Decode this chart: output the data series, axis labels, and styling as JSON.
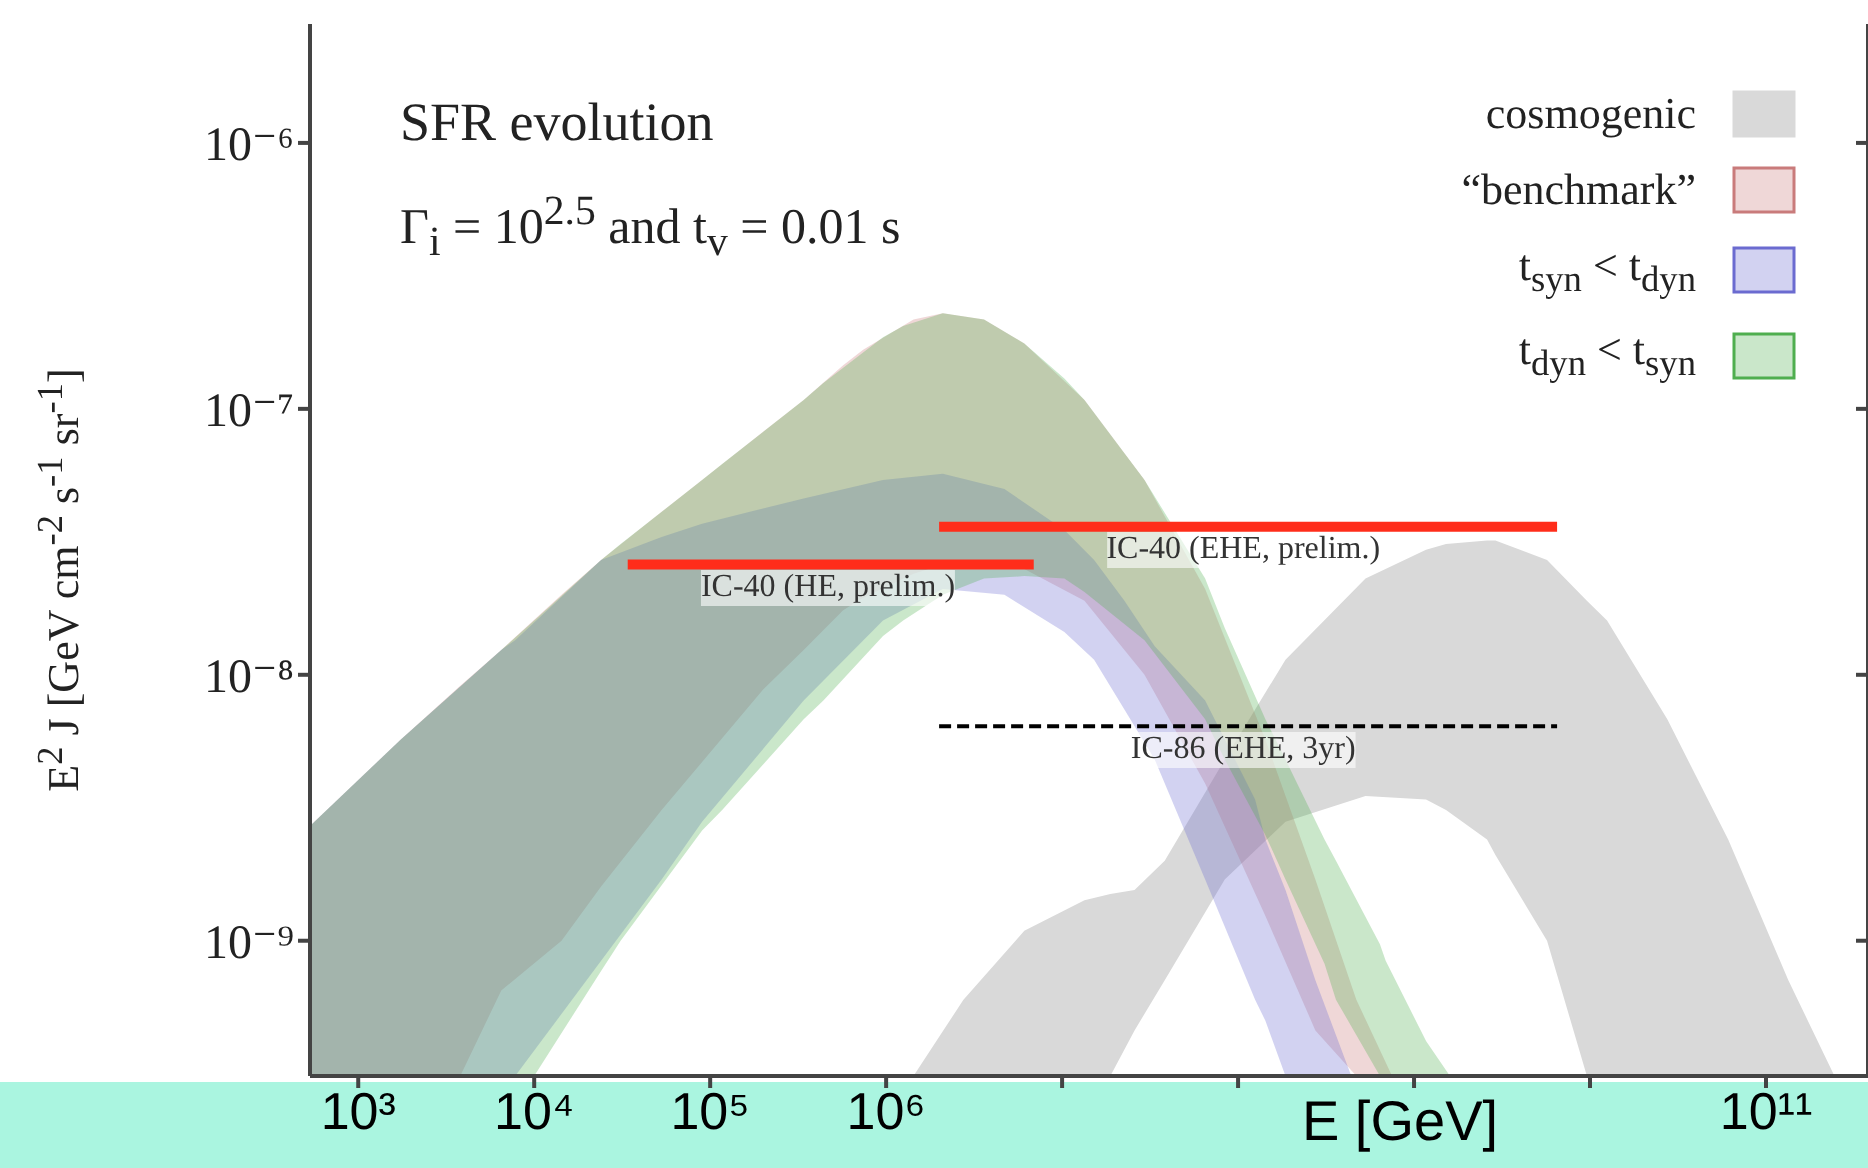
{
  "chart_data": {
    "type": "area",
    "title": "SFR evolution",
    "subtitle": "Γ$_{i}$ = 10$^{2.5}$ and t$_{v}$ = 0.01 s",
    "xlabel": "E [GeV]",
    "ylabel": "E$^{2}$ J [GeV cm$^{-2}$ s$^{-1}$ sr$^{-1}$]",
    "log": "xy",
    "legend": "top right",
    "xlim": [
      532,
      380000000000
    ],
    "ylim": [
      3.1e-10,
      2.8e-06
    ],
    "xticks": [
      {
        "value": 1000,
        "label": "10³"
      },
      {
        "value": 10000,
        "label": "10⁴"
      },
      {
        "value": 100000,
        "label": "10⁵"
      },
      {
        "value": 1000000,
        "label": "10⁶"
      },
      {
        "value": 10000000,
        "label": null
      },
      {
        "value": 100000000,
        "label": null
      },
      {
        "value": 1000000000,
        "label": null
      },
      {
        "value": 10000000000,
        "label": null
      },
      {
        "value": 100000000000,
        "label": "10¹¹"
      }
    ],
    "yticks": [
      {
        "value": 1e-09,
        "label": "10⁻⁹"
      },
      {
        "value": 1e-08,
        "label": "10⁻⁸"
      },
      {
        "value": 1e-07,
        "label": "10⁻⁷"
      },
      {
        "value": 1e-06,
        "label": "10⁻⁶"
      }
    ],
    "series": [
      {
        "name": "cosmogenic",
        "color": "#d9d9d9",
        "x": [
          1430000,
          2750000,
          6100000,
          13400000,
          18800000,
          25800000,
          38300000,
          84000000,
          186000000,
          530000000,
          1170000000,
          1520000000,
          2600000000,
          2900000000,
          5700000000,
          9600000000,
          12500000000,
          27500000000,
          61000000000,
          134000000000,
          245000000000
        ],
        "values": [
          null,
          null,
          null,
          null,
          null,
          null,
          null,
          null,
          null,
          null,
          null,
          null,
          null,
          null,
          null,
          null,
          null,
          null,
          null,
          null,
          null
        ],
        "lower": [
          3.1e-10,
          3.1e-10,
          3.1e-10,
          3.1e-10,
          3.1e-10,
          4.6e-10,
          7.1e-10,
          1.7e-09,
          2.8e-09,
          3.5e-09,
          3.4e-09,
          3.1e-09,
          2.4e-09,
          2.1e-09,
          1e-09,
          3.1e-10,
          3.1e-10,
          3.1e-10,
          3.1e-10,
          3.1e-10,
          3.1e-10
        ],
        "upper": [
          3.1e-10,
          6e-10,
          1.09e-09,
          1.42e-09,
          1.5e-09,
          1.55e-09,
          2e-09,
          4.8e-09,
          1.14e-08,
          2.3e-08,
          2.95e-08,
          3.1e-08,
          3.2e-08,
          3.2e-08,
          2.7e-08,
          1.9e-08,
          1.6e-08,
          6.8e-09,
          2.4e-09,
          7.1e-10,
          3.1e-10
        ]
      },
      {
        "name": "“benchmark”",
        "color": "#c97b7b",
        "x": [
          532,
          1740,
          3800,
          6500,
          14300,
          24000,
          53000,
          90000,
          200000,
          340000,
          570000,
          740000,
          1430000,
          2100000,
          3600000,
          6100000,
          13400000,
          29400000,
          65000000,
          143000000,
          275000000,
          470000000,
          750000000
        ],
        "values": [
          null,
          null,
          null,
          null,
          null,
          null,
          null,
          null,
          null,
          null,
          null,
          null,
          null,
          null,
          null,
          null,
          null,
          null,
          null,
          null,
          null,
          null,
          null
        ],
        "lower": [
          3.1e-10,
          3.1e-10,
          3.1e-10,
          6.5e-10,
          1e-09,
          1.6e-09,
          3.1e-09,
          4.7e-09,
          8.8e-09,
          1.24e-08,
          1.75e-08,
          1.95e-08,
          2.4e-08,
          2.6e-08,
          2.7e-08,
          2.5e-08,
          1.9e-08,
          1e-08,
          3.9e-09,
          1.24e-09,
          4.6e-10,
          3.1e-10,
          3.1e-10
        ],
        "upper": [
          2.7e-09,
          5.7e-09,
          9.1e-09,
          1.24e-08,
          2e-08,
          2.7e-08,
          4.1e-08,
          5.4e-08,
          8.2e-08,
          1.08e-07,
          1.46e-07,
          1.67e-07,
          2.17e-07,
          2.29e-07,
          2.17e-07,
          1.76e-07,
          1.08e-07,
          5.4e-08,
          2.1e-08,
          5.7e-09,
          1.7e-09,
          6e-10,
          3.1e-10
        ]
      },
      {
        "name": "t$_{syn}$ < t$_{dyn}$",
        "color": "#6b6bd0",
        "x": [
          532,
          1740,
          6500,
          7800,
          24000,
          53000,
          90000,
          340000,
          960000,
          2100000,
          4700000,
          10300000,
          15200000,
          22600000,
          33600000,
          65000000,
          125000000,
          143000000,
          186000000,
          275000000,
          440000000
        ],
        "values": [
          null,
          null,
          null,
          null,
          null,
          null,
          null,
          null,
          null,
          null,
          null,
          null,
          null,
          null,
          null,
          null,
          null,
          null,
          null,
          null,
          null
        ],
        "lower": [
          3.1e-10,
          3.1e-10,
          3.1e-10,
          3.1e-10,
          8.4e-10,
          1.7e-09,
          2.8e-09,
          8e-09,
          1.6e-08,
          2.1e-08,
          2e-08,
          1.45e-08,
          1.14e-08,
          7.4e-09,
          4.8e-09,
          1.7e-09,
          6e-10,
          5e-10,
          3.1e-10,
          3.1e-10,
          3.1e-10
        ],
        "upper": [
          2.7e-09,
          5.7e-09,
          1.24e-08,
          1.35e-08,
          2.7e-08,
          3.3e-08,
          3.7e-08,
          4.6e-08,
          5.4e-08,
          5.7e-08,
          5e-08,
          3.5e-08,
          2.7e-08,
          1.9e-08,
          1.28e-08,
          8e-09,
          3.4e-09,
          2.4e-09,
          1.55e-09,
          7.1e-10,
          3.1e-10
        ]
      },
      {
        "name": "t$_{dyn}$ < t$_{syn}$",
        "color": "#4fae4f",
        "x": [
          532,
          1740,
          6500,
          10000,
          24000,
          31000,
          90000,
          117000,
          340000,
          440000,
          960000,
          1250000,
          2100000,
          3600000,
          6100000,
          10300000,
          13400000,
          29400000,
          65000000,
          84000000,
          143000000,
          186000000,
          310000000,
          360000000,
          640000000,
          690000000,
          1170000000,
          1600000000
        ],
        "values": [
          null,
          null,
          null,
          null,
          null,
          null,
          null,
          null,
          null,
          null,
          null,
          null,
          null,
          null,
          null,
          null,
          null,
          null,
          null,
          null,
          null,
          null,
          null,
          null,
          null,
          null,
          null,
          null
        ],
        "lower": [
          3.1e-10,
          3.1e-10,
          3.1e-10,
          3.1e-10,
          7.7e-10,
          1e-09,
          2.6e-09,
          3.1e-09,
          6.8e-09,
          8e-09,
          1.4e-08,
          1.6e-08,
          2e-08,
          2.3e-08,
          2.35e-08,
          2.3e-08,
          2.05e-08,
          1.35e-08,
          6.8e-09,
          4.8e-09,
          2.5e-09,
          1.7e-09,
          8.2e-10,
          6e-10,
          3.1e-10,
          3.1e-10,
          3.1e-10,
          3.1e-10
        ],
        "upper": [
          2.7e-09,
          5.7e-09,
          1.24e-08,
          1.6e-08,
          2.7e-08,
          3.1e-08,
          5.4e-08,
          6.2e-08,
          1.08e-07,
          1.25e-07,
          1.86e-07,
          2.05e-07,
          2.29e-07,
          2.17e-07,
          1.76e-07,
          1.3e-07,
          1.08e-07,
          5.4e-08,
          2.3e-08,
          1.5e-08,
          6.8e-09,
          4.8e-09,
          2.4e-09,
          2e-09,
          9.7e-10,
          8.4e-10,
          4.2e-10,
          3.1e-10
        ]
      },
      {
        "name": "IC-40 (HE, prelim.)",
        "type": "line",
        "color": "#ff2d1a",
        "x": [
          34000,
          6900000
        ],
        "values": [
          2.6e-08,
          2.6e-08
        ]
      },
      {
        "name": "IC-40 (EHE, prelim.)",
        "type": "line",
        "color": "#ff2d1a",
        "x": [
          2000000,
          6500000000
        ],
        "values": [
          3.6e-08,
          3.6e-08
        ]
      },
      {
        "name": "IC-86 (EHE, 3yr)",
        "type": "line",
        "color": "#000000",
        "line_style": "dashed",
        "x": [
          2000000,
          6500000000
        ],
        "values": [
          6.4e-09,
          6.4e-09
        ]
      }
    ]
  }
}
